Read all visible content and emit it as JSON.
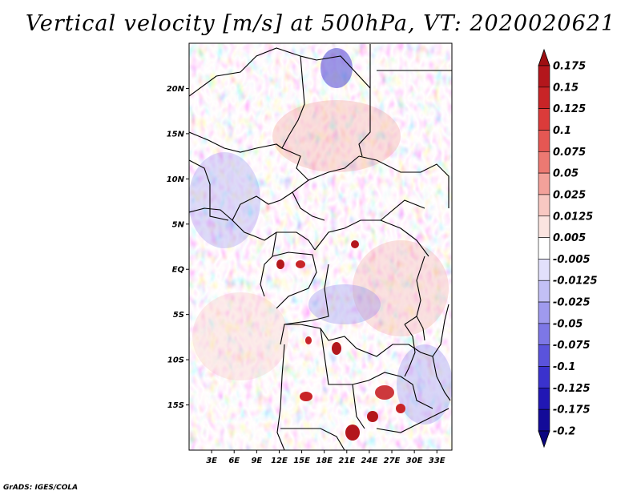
{
  "title": "Vertical velocity [m/s] at 500hPa, VT: 2020020621",
  "credit": "GrADS: IGES/COLA",
  "lat_labels": [
    "20N",
    "15N",
    "10N",
    "5N",
    "EQ",
    "5S",
    "10S",
    "15S"
  ],
  "lat_values": [
    20,
    15,
    10,
    5,
    0,
    -5,
    -10,
    -15
  ],
  "lon_labels": [
    "3E",
    "6E",
    "9E",
    "12E",
    "15E",
    "18E",
    "21E",
    "24E",
    "27E",
    "30E",
    "33E"
  ],
  "lon_values": [
    3,
    6,
    9,
    12,
    15,
    18,
    21,
    24,
    27,
    30,
    33
  ],
  "domain": {
    "lon_range": [
      0,
      35
    ],
    "lat_range": [
      -20,
      25
    ]
  },
  "colorbar": {
    "labels": [
      "0.175",
      "0.15",
      "0.125",
      "0.1",
      "0.075",
      "0.05",
      "0.025",
      "0.0125",
      "0.005",
      "-0.005",
      "-0.0125",
      "-0.025",
      "-0.05",
      "-0.075",
      "-0.1",
      "-0.125",
      "-0.175",
      "-0.2"
    ],
    "colors": [
      "#9e0f12",
      "#b3161c",
      "#c82427",
      "#db3b3a",
      "#e55753",
      "#ec7972",
      "#f3a19a",
      "#f8c8c2",
      "#fbe4e0",
      "#ffffff",
      "#e2e0fb",
      "#c3c0f5",
      "#9f9aee",
      "#7d77e6",
      "#5a53dc",
      "#3a32cd",
      "#2117b4",
      "#130b98",
      "#0b0680"
    ]
  }
}
